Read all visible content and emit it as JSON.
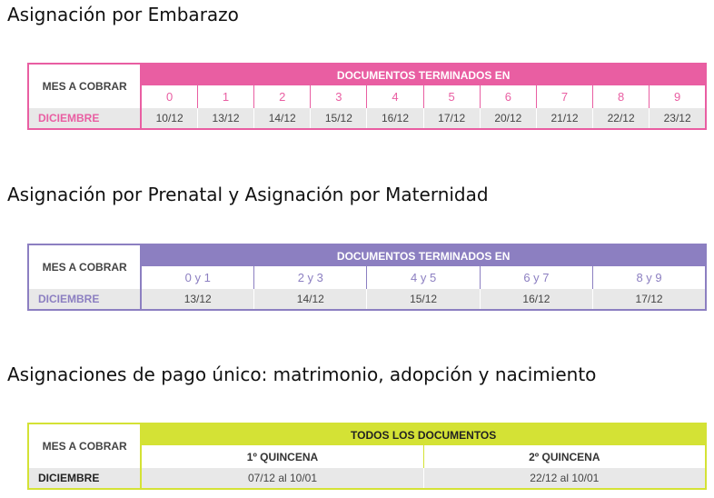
{
  "sections": [
    {
      "heading": "Asignación por Embarazo",
      "table": {
        "corner_label": "MES A COBRAR",
        "header": "DOCUMENTOS TERMINADOS EN",
        "columns": [
          "0",
          "1",
          "2",
          "3",
          "4",
          "5",
          "6",
          "7",
          "8",
          "9"
        ],
        "row_label": "DICIEMBRE",
        "dates": [
          "10/12",
          "13/12",
          "14/12",
          "15/12",
          "16/12",
          "17/12",
          "20/12",
          "21/12",
          "22/12",
          "23/12"
        ]
      }
    },
    {
      "heading": "Asignación por Prenatal y Asignación por Maternidad",
      "table": {
        "corner_label": "MES A COBRAR",
        "header": "DOCUMENTOS TERMINADOS EN",
        "columns": [
          "0 y 1",
          "2 y 3",
          "4 y 5",
          "6 y 7",
          "8 y 9"
        ],
        "row_label": "DICIEMBRE",
        "dates": [
          "13/12",
          "14/12",
          "15/12",
          "16/12",
          "17/12"
        ]
      }
    },
    {
      "heading": "Asignaciones de pago único: matrimonio, adopción y nacimiento",
      "table": {
        "corner_label": "MES A COBRAR",
        "header": "TODOS LOS DOCUMENTOS",
        "columns": [
          "1º QUINCENA",
          "2º QUINCENA"
        ],
        "row_label": "DICIEMBRE",
        "dates": [
          "07/12 al 10/01",
          "22/12 al 10/01"
        ]
      }
    }
  ],
  "colors": {
    "embarazo": "#e95ea2",
    "prenatal": "#8c7fc1",
    "pago_unico": "#d4e235",
    "row_background": "#e8e8e8"
  }
}
